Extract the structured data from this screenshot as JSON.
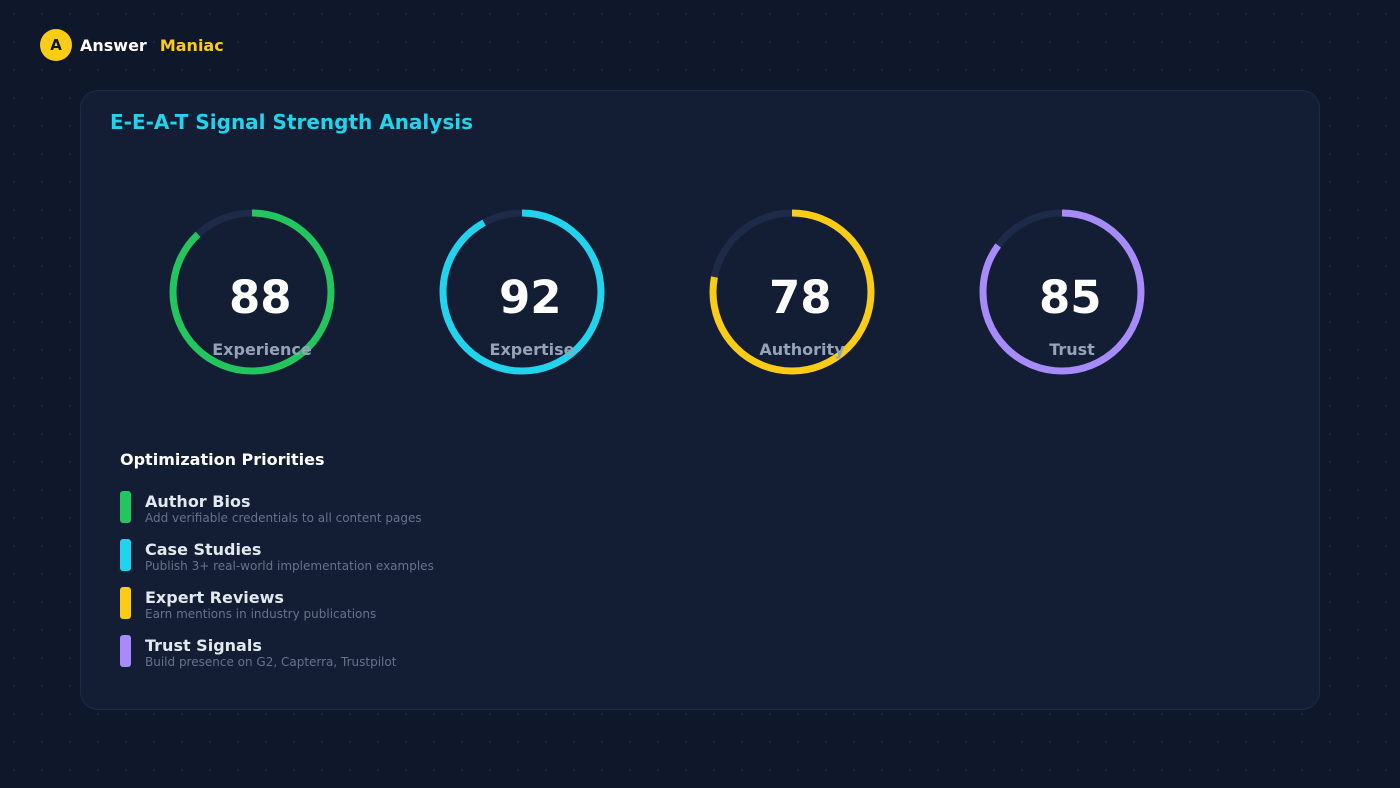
{
  "brand": {
    "logo_letter": "A",
    "word1": "Answer",
    "word2": "Maniac"
  },
  "card": {
    "title": "E-E-A-T Signal Strength Analysis"
  },
  "scores": [
    {
      "label": "Experience",
      "value": "88",
      "percent": 88,
      "color": "#22c55e"
    },
    {
      "label": "Expertise",
      "value": "92",
      "percent": 92,
      "color": "#22d3ee"
    },
    {
      "label": "Authority",
      "value": "78",
      "percent": 78,
      "color": "#facc15"
    },
    {
      "label": "Trust",
      "value": "85",
      "percent": 85,
      "color": "#a78bfa"
    }
  ],
  "track_color": "#1e2a4a",
  "priorities": {
    "title": "Optimization Priorities",
    "items": [
      {
        "title": "Author Bios",
        "desc": "Add verifiable credentials to all content pages",
        "color": "#22c55e"
      },
      {
        "title": "Case Studies",
        "desc": "Publish 3+ real-world implementation examples",
        "color": "#22d3ee"
      },
      {
        "title": "Expert Reviews",
        "desc": "Earn mentions in industry publications",
        "color": "#facc15"
      },
      {
        "title": "Trust Signals",
        "desc": "Build presence on G2, Capterra, Trustpilot",
        "color": "#a78bfa"
      }
    ]
  }
}
